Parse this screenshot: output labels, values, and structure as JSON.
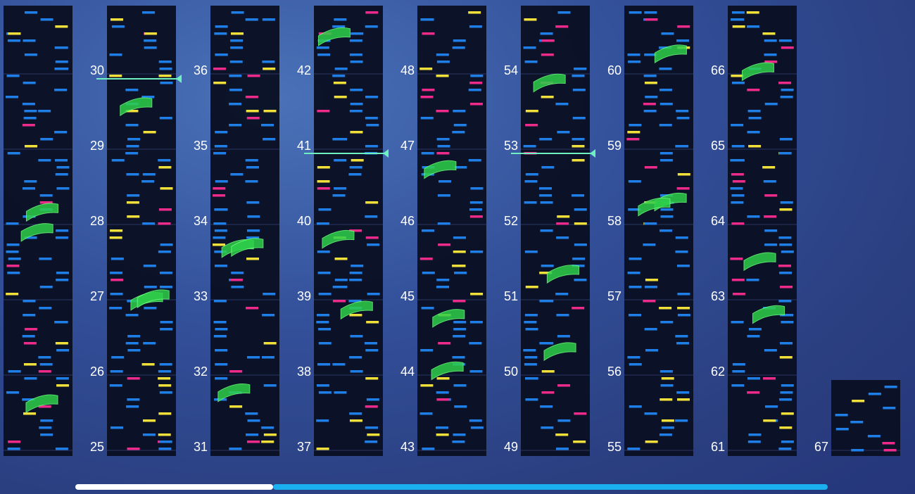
{
  "columns": [
    {
      "measures": []
    },
    {
      "measures": [
        25,
        26,
        27,
        28,
        29,
        30
      ]
    },
    {
      "measures": [
        31,
        32,
        33,
        34,
        35,
        36
      ]
    },
    {
      "measures": [
        37,
        38,
        39,
        40,
        41,
        42
      ]
    },
    {
      "measures": [
        43,
        44,
        45,
        46,
        47,
        48
      ]
    },
    {
      "measures": [
        49,
        50,
        51,
        52,
        53,
        54
      ]
    },
    {
      "measures": [
        55,
        56,
        57,
        58,
        59,
        60
      ]
    },
    {
      "measures": [
        61,
        62,
        63,
        64,
        65,
        66
      ]
    },
    {
      "measures": [
        67
      ]
    }
  ]
}
